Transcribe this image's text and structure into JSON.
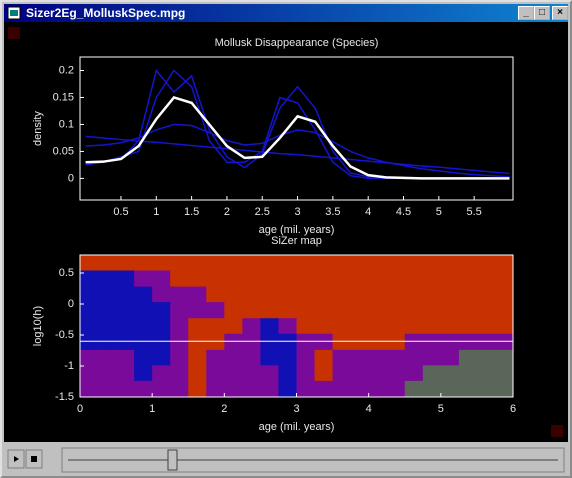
{
  "window": {
    "title": "Sizer2Eg_MolluskSpec.mpg"
  },
  "chart_data": [
    {
      "type": "line",
      "title": "Mollusk Disappearance (Species)",
      "xlabel": "age (mil. years)",
      "ylabel": "density",
      "x": [
        0,
        0.25,
        0.5,
        0.75,
        1,
        1.25,
        1.5,
        1.75,
        2,
        2.25,
        2.5,
        2.75,
        3,
        3.25,
        3.5,
        3.75,
        4,
        4.25,
        4.5,
        4.75,
        5,
        5.25,
        5.5,
        5.75,
        6
      ],
      "series": [
        {
          "color": "#1414d0",
          "values": [
            0.078,
            0.075,
            0.072,
            0.069,
            0.067,
            0.064,
            0.061,
            0.058,
            0.055,
            0.052,
            0.049,
            0.046,
            0.044,
            0.041,
            0.038,
            0.035,
            0.032,
            0.029,
            0.026,
            0.023,
            0.021,
            0.018,
            0.015,
            0.012,
            0.009
          ]
        },
        {
          "color": "#1414d0",
          "values": [
            0.06,
            0.062,
            0.066,
            0.075,
            0.09,
            0.1,
            0.098,
            0.085,
            0.07,
            0.062,
            0.065,
            0.08,
            0.09,
            0.085,
            0.068,
            0.05,
            0.038,
            0.03,
            0.024,
            0.018,
            0.014,
            0.01,
            0.007,
            0.005,
            0.003
          ]
        },
        {
          "color": "#1414d0",
          "values": [
            0.03,
            0.032,
            0.035,
            0.07,
            0.2,
            0.16,
            0.19,
            0.09,
            0.04,
            0.02,
            0.045,
            0.13,
            0.17,
            0.13,
            0.05,
            0.01,
            0.003,
            0.001,
            0,
            0,
            0,
            0,
            0,
            0,
            0
          ]
        },
        {
          "color": "#1414d0",
          "values": [
            0.025,
            0.03,
            0.04,
            0.05,
            0.15,
            0.2,
            0.17,
            0.07,
            0.03,
            0.03,
            0.05,
            0.15,
            0.14,
            0.09,
            0.03,
            0.005,
            0,
            0,
            0,
            0,
            0,
            0,
            0,
            0,
            0
          ]
        },
        {
          "color": "#ffffff",
          "values": [
            0.03,
            0.031,
            0.036,
            0.06,
            0.11,
            0.15,
            0.14,
            0.1,
            0.06,
            0.038,
            0.04,
            0.075,
            0.115,
            0.105,
            0.06,
            0.022,
            0.006,
            0.002,
            0.001,
            0,
            0,
            0,
            0,
            0,
            0
          ]
        }
      ],
      "xlim": [
        -0.08,
        6.05
      ],
      "xticks": [
        0.5,
        1,
        1.5,
        2,
        2.5,
        3,
        3.5,
        4,
        4.5,
        5,
        5.5
      ],
      "ylim": [
        -0.04,
        0.225
      ],
      "yticks": [
        0,
        0.05,
        0.1,
        0.15,
        0.2
      ]
    },
    {
      "type": "heatmap",
      "title": "SiZer map",
      "xlabel": "age (mil. years)",
      "ylabel": "log10(h)",
      "x": [
        0,
        0.25,
        0.5,
        0.75,
        1,
        1.25,
        1.5,
        1.75,
        2,
        2.25,
        2.5,
        2.75,
        3,
        3.25,
        3.5,
        3.75,
        4,
        4.25,
        4.5,
        4.75,
        5,
        5.25,
        5.5,
        5.75,
        6
      ],
      "y": [
        0.79,
        0.54,
        0.28,
        0.03,
        -0.23,
        -0.48,
        -0.74,
        -0.99,
        -1.24,
        -1.5
      ],
      "colors": [
        "#1010b4",
        "#c83200",
        "#7a0a9a",
        "#5a665a"
      ],
      "values": [
        [
          1,
          1,
          1,
          1,
          1,
          1,
          1,
          1,
          1,
          1,
          1,
          1,
          1,
          1,
          1,
          1,
          1,
          1,
          1,
          1,
          1,
          1,
          1,
          1
        ],
        [
          0,
          0,
          0,
          2,
          2,
          1,
          1,
          1,
          1,
          1,
          1,
          1,
          1,
          1,
          1,
          1,
          1,
          1,
          1,
          1,
          1,
          1,
          1,
          1
        ],
        [
          0,
          0,
          0,
          0,
          2,
          2,
          2,
          1,
          1,
          1,
          1,
          1,
          1,
          1,
          1,
          1,
          1,
          1,
          1,
          1,
          1,
          1,
          1,
          1
        ],
        [
          0,
          0,
          0,
          0,
          0,
          2,
          2,
          2,
          1,
          1,
          1,
          1,
          1,
          1,
          1,
          1,
          1,
          1,
          1,
          1,
          1,
          1,
          1,
          1
        ],
        [
          0,
          0,
          0,
          0,
          0,
          2,
          1,
          1,
          1,
          2,
          0,
          2,
          1,
          1,
          1,
          1,
          1,
          1,
          1,
          1,
          1,
          1,
          1,
          1
        ],
        [
          0,
          0,
          0,
          0,
          0,
          2,
          1,
          1,
          2,
          2,
          0,
          0,
          2,
          2,
          1,
          1,
          1,
          1,
          2,
          2,
          2,
          2,
          2,
          2
        ],
        [
          2,
          2,
          2,
          0,
          0,
          2,
          1,
          2,
          2,
          2,
          0,
          0,
          2,
          1,
          2,
          2,
          2,
          2,
          2,
          2,
          2,
          3,
          3,
          3
        ],
        [
          2,
          2,
          2,
          0,
          2,
          2,
          1,
          2,
          2,
          2,
          2,
          0,
          2,
          1,
          2,
          2,
          2,
          2,
          2,
          3,
          3,
          3,
          3,
          3
        ],
        [
          2,
          2,
          2,
          2,
          2,
          2,
          1,
          2,
          2,
          2,
          2,
          0,
          2,
          2,
          2,
          2,
          2,
          2,
          3,
          3,
          3,
          3,
          3,
          3
        ]
      ],
      "reference_line": {
        "value": -0.6,
        "color": "#ffffff"
      },
      "xlim": [
        0,
        6
      ],
      "xticks": [
        0,
        1,
        2,
        3,
        4,
        5,
        6
      ],
      "ylim": [
        -1.5,
        0.79
      ],
      "yticks": [
        0.5,
        0,
        -0.5,
        -1,
        -1.5
      ]
    }
  ]
}
